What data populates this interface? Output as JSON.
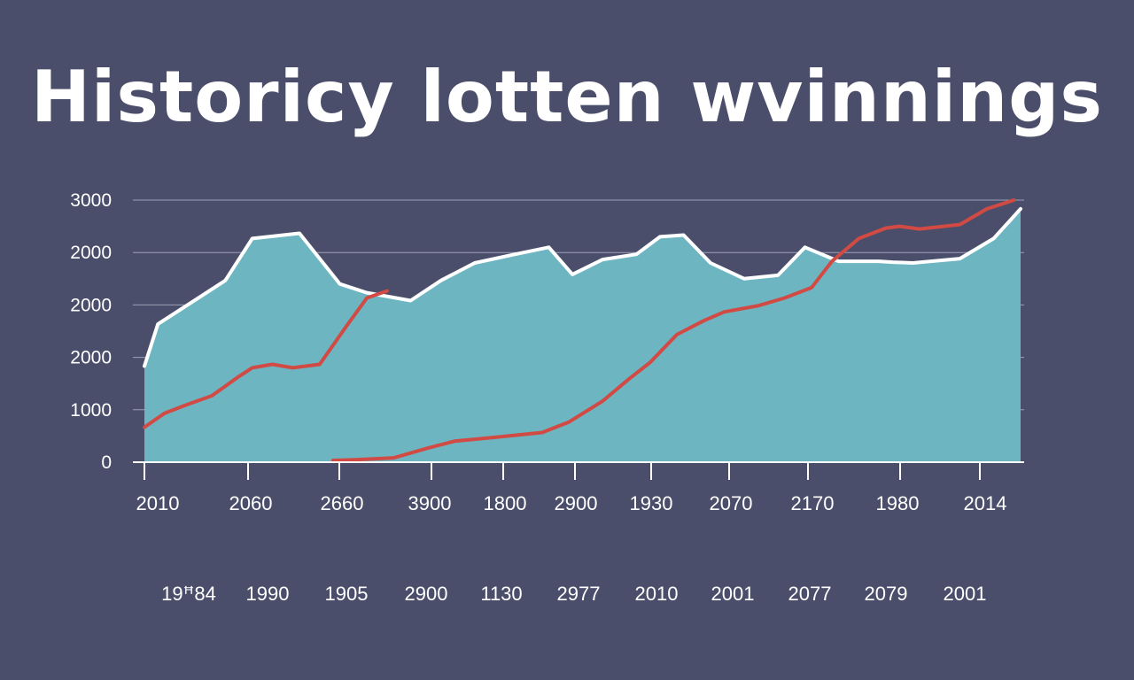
{
  "chart_data": {
    "type": "area",
    "title": "Historicy lotten  wvinnings",
    "xlabel": "",
    "ylabel": "",
    "ylim": [
      0,
      3000
    ],
    "grid": true,
    "y_tick_labels": [
      "0",
      "1000",
      "2000",
      "2000",
      "2000",
      "3000"
    ],
    "x_tick_labels_row1": [
      "2010",
      "2060",
      "2660",
      "3900",
      "1800",
      "2900",
      "1930",
      "2070",
      "2170",
      "1980",
      "2014"
    ],
    "x_tick_labels_row2": [
      "19ꟸ84",
      "1990",
      "1905",
      "2900",
      "1130",
      "2977",
      "2010",
      "2001",
      "2077",
      "2079",
      "2001"
    ],
    "x_index_range": [
      0,
      12
    ],
    "series": [
      {
        "style": "filled-area",
        "color": "#ffffff",
        "fill": "#6db5c1",
        "x": [
          0,
          0.2,
          0.6,
          1.2,
          1.6,
          2.3,
          2.9,
          3.3,
          3.95,
          4.4,
          4.9,
          5.5,
          6.0,
          6.35,
          6.8,
          7.3,
          7.65,
          8.0,
          8.4,
          8.9,
          9.4,
          9.8,
          10.3,
          10.9,
          11.1,
          11.4,
          12.1,
          12.6,
          13.0
        ],
        "y": [
          1100,
          1580,
          1780,
          2080,
          2560,
          2620,
          2040,
          1940,
          1850,
          2080,
          2280,
          2380,
          2460,
          2150,
          2320,
          2380,
          2580,
          2600,
          2280,
          2100,
          2140,
          2460,
          2300,
          2300,
          2290,
          2280,
          2330,
          2560,
          2900
        ]
      },
      {
        "style": "line",
        "color": "#d24a44",
        "x": [
          0,
          0.3,
          0.6,
          1.0,
          1.4,
          1.6,
          1.9,
          2.2,
          2.6,
          3.0,
          3.3,
          3.6
        ],
        "y": [
          400,
          560,
          650,
          760,
          980,
          1080,
          1120,
          1080,
          1120,
          1560,
          1880,
          1960
        ]
      },
      {
        "style": "line",
        "color": "#d24a44",
        "x": [
          2.8,
          3.2,
          3.7,
          4.2,
          4.6,
          5.0,
          5.4,
          5.9,
          6.3,
          6.8,
          7.2,
          7.5,
          7.9,
          8.3,
          8.6,
          9.1,
          9.5,
          9.9,
          10.2,
          10.6,
          11.0,
          11.2,
          11.5,
          12.1,
          12.5,
          12.9
        ],
        "y": [
          20,
          30,
          50,
          160,
          240,
          270,
          300,
          340,
          460,
          700,
          960,
          1140,
          1460,
          1620,
          1720,
          1790,
          1880,
          2000,
          2300,
          2560,
          2680,
          2700,
          2670,
          2720,
          2900,
          3000
        ]
      }
    ]
  }
}
